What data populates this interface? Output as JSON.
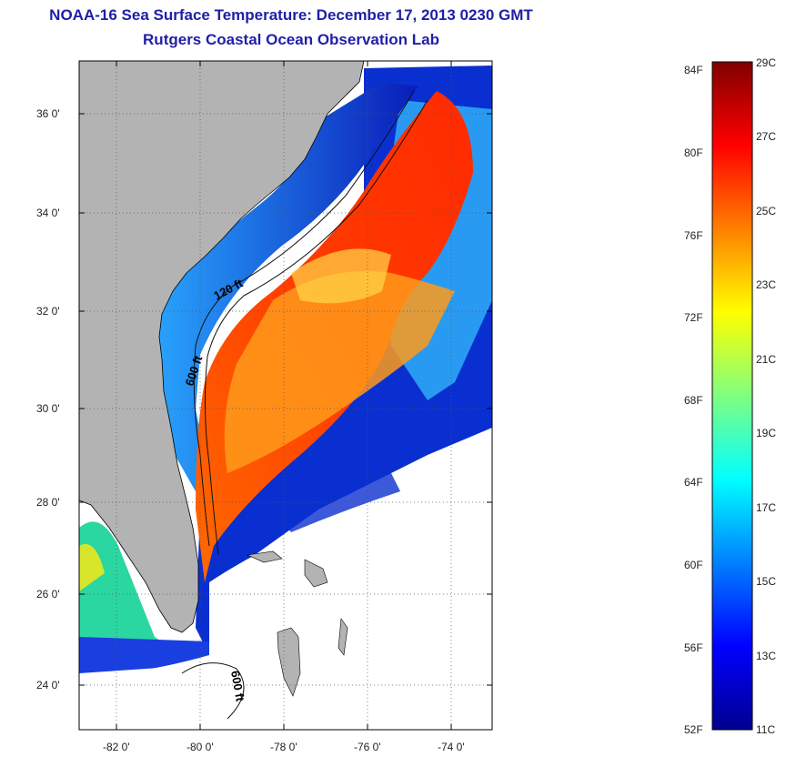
{
  "header": {
    "title": "NOAA-16 Sea Surface Temperature:  December 17, 2013 0230 GMT",
    "subtitle": "Rutgers Coastal Ocean Observation Lab"
  },
  "map": {
    "lat_ticks": [
      "36 0'",
      "34 0'",
      "32 0'",
      "30 0'",
      "28 0'",
      "26 0'",
      "24 0'"
    ],
    "lon_ticks": [
      "-82 0'",
      "-80 0'",
      "-78 0'",
      "-76 0'",
      "-74 0'"
    ],
    "isobath_labels": [
      "120 ft",
      "600 ft",
      "600 ft"
    ],
    "colors": {
      "land": "#b3b3b3",
      "cloud": "#ffffff"
    }
  },
  "colorbar": {
    "fahrenheit_labels": [
      "84F",
      "80F",
      "76F",
      "72F",
      "68F",
      "64F",
      "60F",
      "56F",
      "52F"
    ],
    "celsius_labels": [
      "29C",
      "27C",
      "25C",
      "23C",
      "21C",
      "19C",
      "17C",
      "15C",
      "13C",
      "11C"
    ],
    "min_c": 11,
    "max_c": 29,
    "colormap": "jet"
  }
}
